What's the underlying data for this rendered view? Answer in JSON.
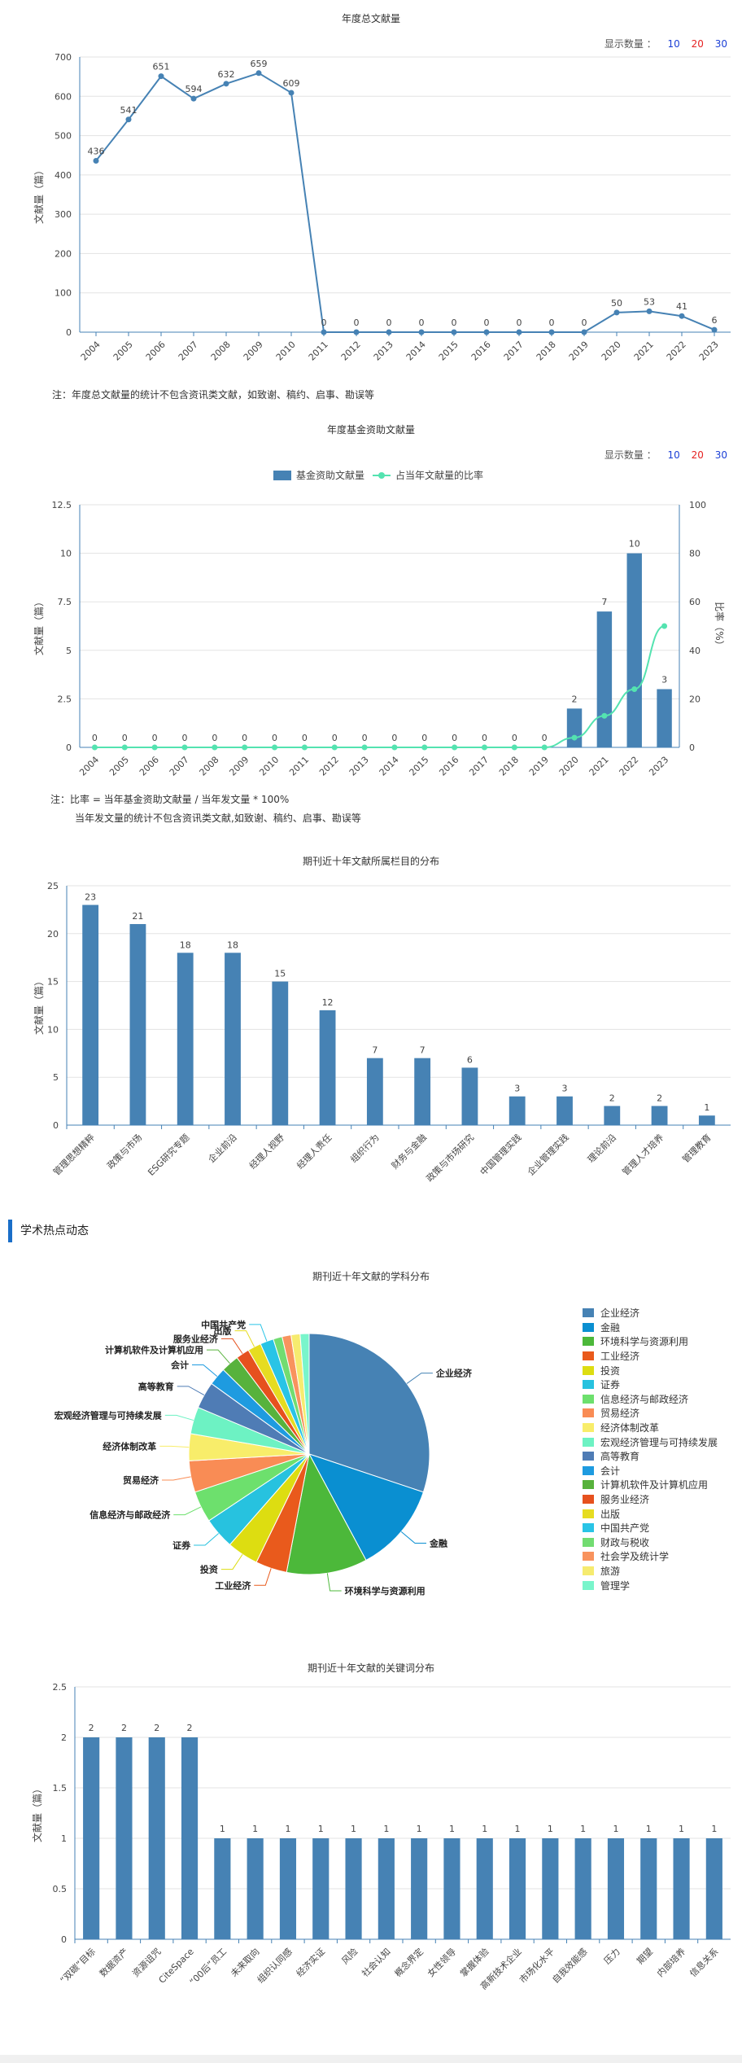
{
  "colors": {
    "bar": "#4682b4",
    "line": "#4682b4",
    "ratio_line": "#54e3b0",
    "axis": "#4682b4",
    "grid": "#e3e3e3",
    "show10": "#1b3fd6",
    "show20": "#e52222",
    "show30": "#1b3fd6"
  },
  "section_title": "学术热点动态",
  "charts": {
    "annual": {
      "title": "年度总文献量",
      "show_label": "显示数量 ：",
      "show_options": [
        "10",
        "20",
        "30"
      ],
      "note": "注：年度总文献量的统计不包含资讯类文献，如致谢、稿约、启事、勘误等"
    },
    "fund": {
      "title": "年度基金资助文献量",
      "show_label": "显示数量 ：",
      "show_options": [
        "10",
        "20",
        "30"
      ],
      "note_line1": "注：比率 = 当年基金资助文献量 / 当年发文量 * 100%",
      "note_line2": "当年发文量的统计不包含资讯类文献,如致谢、稿约、启事、勘误等"
    },
    "columns": {
      "title": "期刊近十年文献所属栏目的分布"
    },
    "subjects": {
      "title": "期刊近十年文献的学科分布"
    },
    "keywords": {
      "title": "期刊近十年文献的关键词分布"
    }
  },
  "chart_data": [
    {
      "id": "annual",
      "type": "line",
      "title": "年度总文献量",
      "ylabel": "文献量（篇）",
      "x": [
        "2004",
        "2005",
        "2006",
        "2007",
        "2008",
        "2009",
        "2010",
        "2011",
        "2012",
        "2013",
        "2014",
        "2015",
        "2016",
        "2017",
        "2018",
        "2019",
        "2020",
        "2021",
        "2022",
        "2023"
      ],
      "values": [
        436,
        541,
        651,
        594,
        632,
        659,
        609,
        0,
        0,
        0,
        0,
        0,
        0,
        0,
        0,
        0,
        50,
        53,
        41,
        6
      ],
      "ylim": [
        0,
        700
      ],
      "yticks": [
        "0",
        "100",
        "200",
        "300",
        "400",
        "500",
        "600",
        "700"
      ]
    },
    {
      "id": "fund",
      "type": "bar+line",
      "title": "年度基金资助文献量",
      "ylabel": "文献量（篇）",
      "y2label": "比率（%）",
      "x": [
        "2004",
        "2005",
        "2006",
        "2007",
        "2008",
        "2009",
        "2010",
        "2011",
        "2012",
        "2013",
        "2014",
        "2015",
        "2016",
        "2017",
        "2018",
        "2019",
        "2020",
        "2021",
        "2022",
        "2023"
      ],
      "series": [
        {
          "name": "基金资助文献量",
          "type": "bar",
          "values": [
            0,
            0,
            0,
            0,
            0,
            0,
            0,
            0,
            0,
            0,
            0,
            0,
            0,
            0,
            0,
            0,
            2,
            7,
            10,
            3
          ]
        },
        {
          "name": "占当年文献量的比率",
          "type": "line",
          "values": [
            0,
            0,
            0,
            0,
            0,
            0,
            0,
            0,
            0,
            0,
            0,
            0,
            0,
            0,
            0,
            0,
            4,
            13,
            24,
            50
          ]
        }
      ],
      "ylim": [
        0,
        12.5
      ],
      "yticks": [
        "0",
        "2.5",
        "5",
        "7.5",
        "10",
        "12.5"
      ],
      "y2lim": [
        0,
        100
      ],
      "y2ticks": [
        "0",
        "20",
        "40",
        "60",
        "80",
        "100"
      ]
    },
    {
      "id": "columns",
      "type": "bar",
      "title": "期刊近十年文献所属栏目的分布",
      "ylabel": "文献量（篇）",
      "categories": [
        "管理思想精粹",
        "政策与市场",
        "ESG研究专题",
        "企业前沿",
        "经理人视野",
        "经理人责任",
        "组织行为",
        "财务与金融",
        "政策与市场研究",
        "中国管理实践",
        "企业管理实践",
        "理论前沿",
        "管理人才培养",
        "管理教育"
      ],
      "values": [
        23,
        21,
        18,
        18,
        15,
        12,
        7,
        7,
        6,
        3,
        3,
        2,
        2,
        1
      ],
      "ylim": [
        0,
        25
      ],
      "yticks": [
        "0",
        "5",
        "10",
        "15",
        "20",
        "25"
      ]
    },
    {
      "id": "subjects",
      "type": "pie",
      "title": "期刊近十年文献的学科分布",
      "categories": [
        "企业经济",
        "金融",
        "环境科学与资源利用",
        "工业经济",
        "投资",
        "证券",
        "信息经济与邮政经济",
        "贸易经济",
        "经济体制改革",
        "宏观经济管理与可持续发展",
        "高等教育",
        "会计",
        "计算机软件及计算机应用",
        "服务业经济",
        "出版",
        "中国共产党",
        "财政与税收",
        "社会学及统计学",
        "旅游",
        "管理学"
      ],
      "values": [
        25,
        10,
        9,
        3.5,
        3.5,
        3.5,
        3.5,
        3.5,
        3,
        3,
        3,
        2,
        2,
        1.5,
        1.5,
        1.5,
        1,
        1,
        1,
        1
      ],
      "colors": [
        "#4682b4",
        "#0a8fd1",
        "#4cb83a",
        "#e95a1c",
        "#dddd11",
        "#27c2df",
        "#6de06d",
        "#f98c55",
        "#f8ed6a",
        "#6df2c3",
        "#4f7cb5",
        "#1e9be0",
        "#57b23c",
        "#e6511e",
        "#e6dc21",
        "#29c4e6",
        "#72dc71",
        "#f8935e",
        "#f6eb6f",
        "#79f5cb"
      ],
      "callouts": [
        "企业经济",
        "金融",
        "环境科学与资源利用",
        "工业经济",
        "投资",
        "证券",
        "信息经济与邮政经济",
        "贸易经济",
        "经济体制改革",
        "宏观经济管理与可持续发展",
        "高等教育",
        "会计",
        "计算机软件及计算机应用",
        "服务业经济",
        "出版",
        "中国共产党"
      ]
    },
    {
      "id": "keywords",
      "type": "bar",
      "title": "期刊近十年文献的关键词分布",
      "ylabel": "文献量（篇）",
      "categories": [
        "“双碳”目标",
        "数据资产",
        "资源诅咒",
        "CiteSpace",
        "“00后”员工",
        "未来取向",
        "组织认同感",
        "经济实证",
        "风险",
        "社会认知",
        "概念界定",
        "女性领导",
        "掌握体验",
        "高新技术企业",
        "市场化水平",
        "自我效能感",
        "压力",
        "期望",
        "内部培养",
        "信息关系"
      ],
      "values": [
        2,
        2,
        2,
        2,
        1,
        1,
        1,
        1,
        1,
        1,
        1,
        1,
        1,
        1,
        1,
        1,
        1,
        1,
        1,
        1
      ],
      "ylim": [
        0,
        2.5
      ],
      "yticks": [
        "0",
        "0.5",
        "1",
        "1.5",
        "2",
        "2.5"
      ]
    }
  ]
}
